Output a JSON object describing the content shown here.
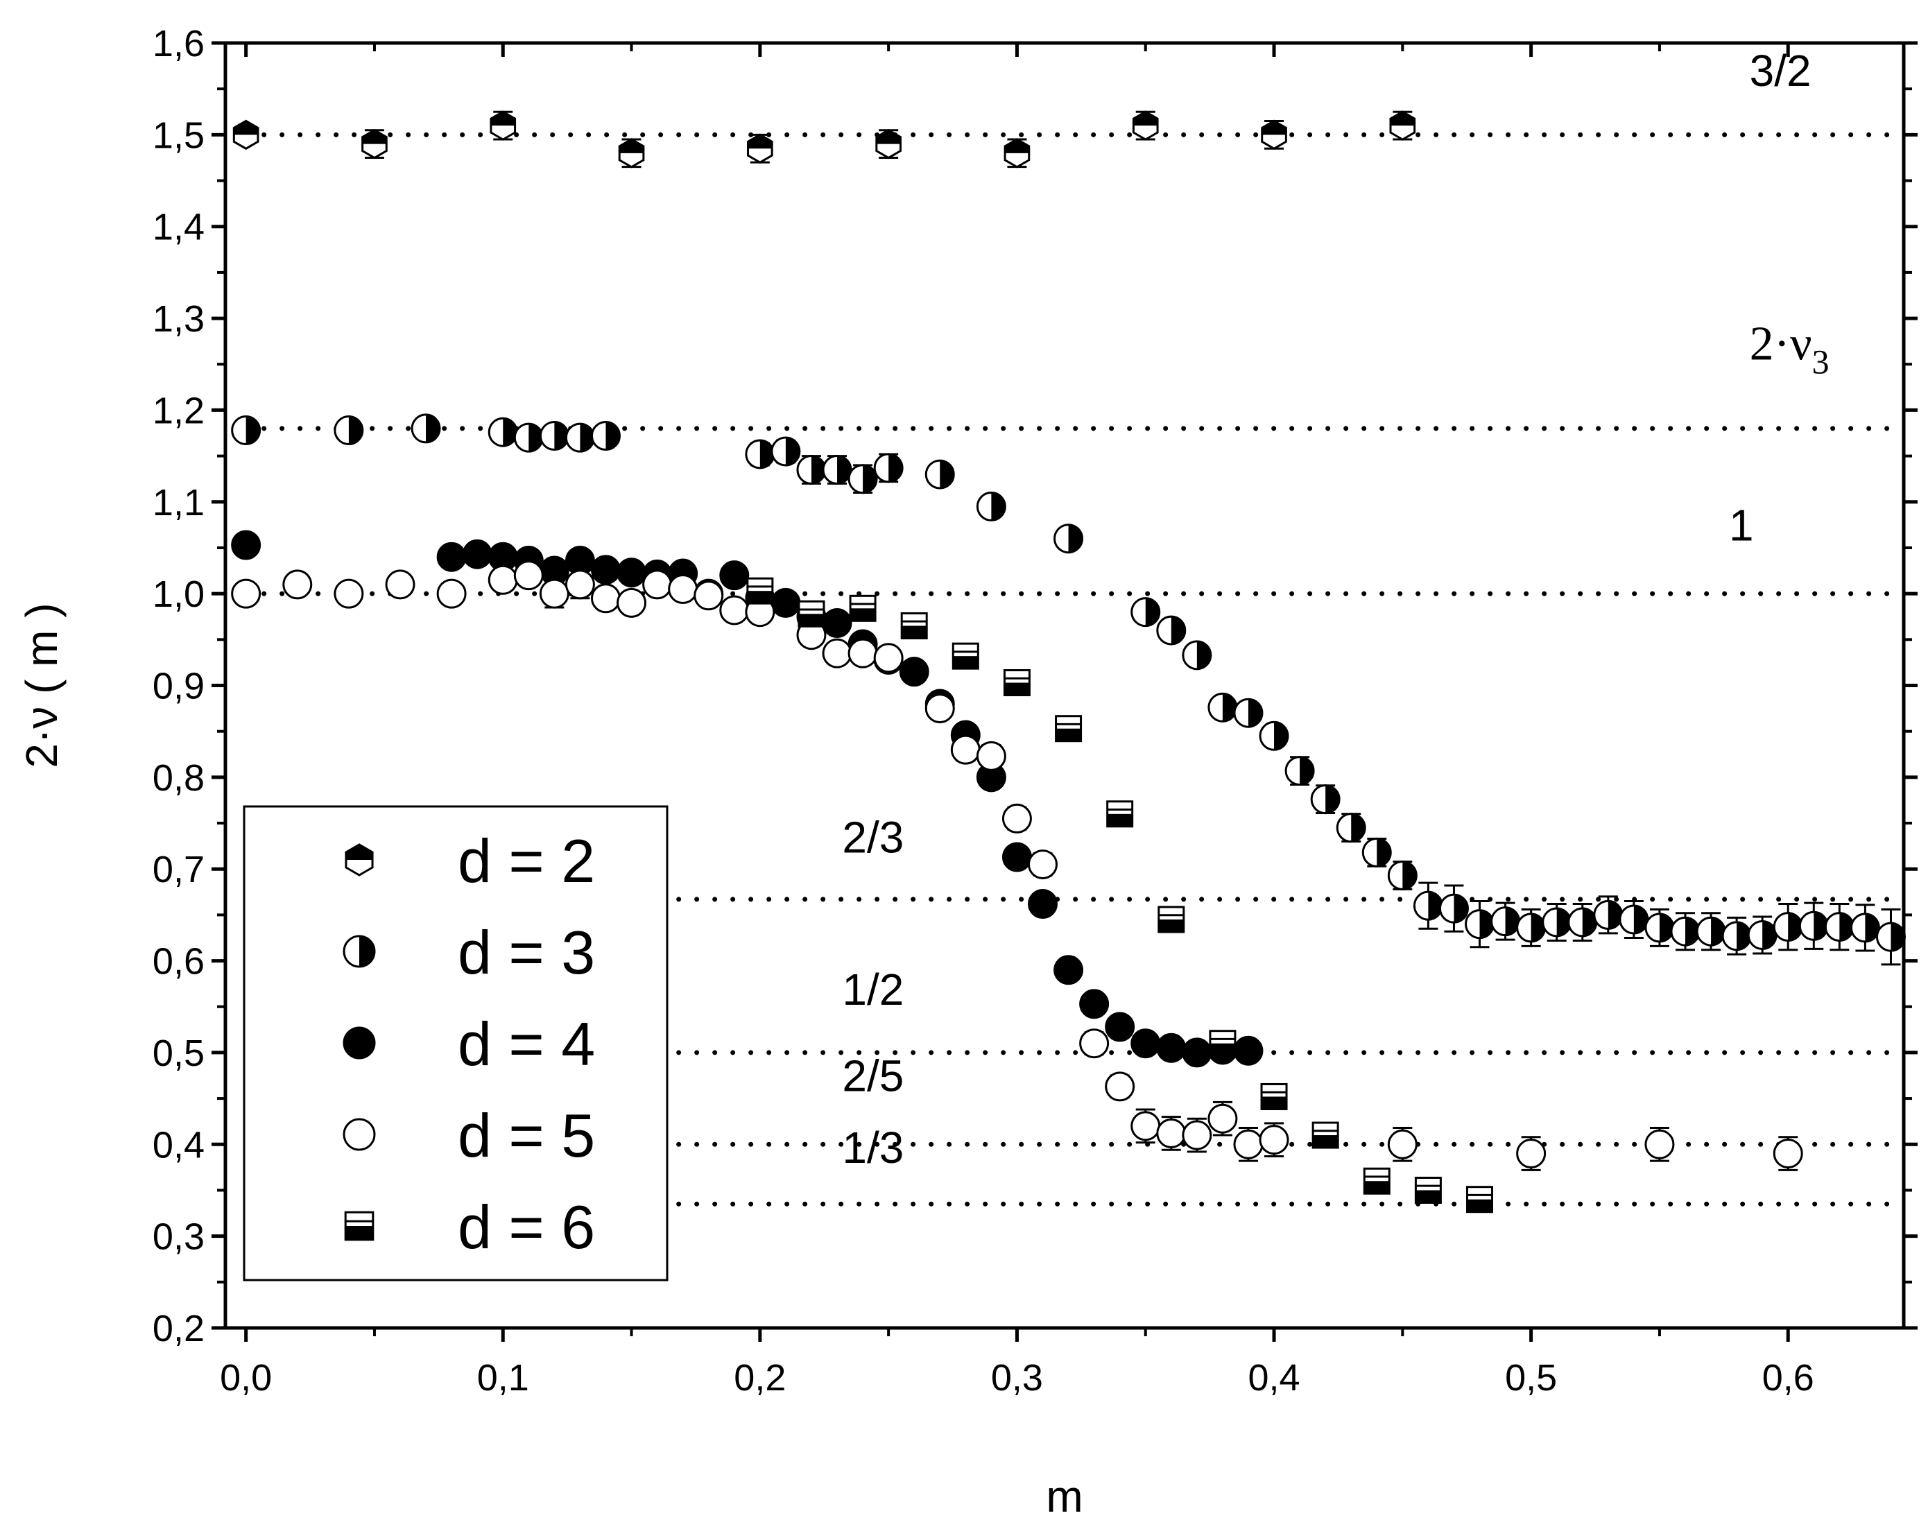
{
  "chart_data": {
    "type": "scatter",
    "xlabel": "m",
    "ylabel": "2·ν ( m )",
    "xlim": [
      -0.008,
      0.645
    ],
    "ylim": [
      0.2,
      1.6
    ],
    "xticks": [
      0.0,
      0.1,
      0.2,
      0.3,
      0.4,
      0.5,
      0.6
    ],
    "xtick_labels": [
      "0,0",
      "0,1",
      "0,2",
      "0,3",
      "0,4",
      "0,5",
      "0,6"
    ],
    "yticks": [
      0.2,
      0.3,
      0.4,
      0.5,
      0.6,
      0.7,
      0.8,
      0.9,
      1.0,
      1.1,
      1.2,
      1.3,
      1.4,
      1.5,
      1.6
    ],
    "ytick_labels": [
      "0,2",
      "0,3",
      "0,4",
      "0,5",
      "0,6",
      "0,7",
      "0,8",
      "0,9",
      "1,0",
      "1,1",
      "1,2",
      "1,3",
      "1,4",
      "1,5",
      "1,6"
    ],
    "grid": false,
    "legend_position": "bottom-left",
    "reference_lines": [
      {
        "y": 1.5,
        "x_start": 0.0,
        "label": "3/2",
        "label_x": 0.585,
        "label_y": 1.553
      },
      {
        "y": 1.18,
        "x_start": 0.0,
        "label": "2·ν",
        "label_sub": "3",
        "label_x": 0.585,
        "label_y": 1.255
      },
      {
        "y": 1.0,
        "x_start": 0.0,
        "label": "1",
        "label_x": 0.577,
        "label_y": 1.058
      },
      {
        "y": 0.667,
        "x_start": 0.0,
        "label": "2/3",
        "label_x": 0.232,
        "label_y": 0.718
      },
      {
        "y": 0.5,
        "x_start": 0.0,
        "label": "1/2",
        "label_x": 0.232,
        "label_y": 0.552
      },
      {
        "y": 0.4,
        "x_start": 0.0,
        "label": "2/5",
        "label_x": 0.232,
        "label_y": 0.458
      },
      {
        "y": 0.335,
        "x_start": 0.0,
        "label": "1/3",
        "label_x": 0.232,
        "label_y": 0.38
      }
    ],
    "series": [
      {
        "name": "d = 2",
        "marker": "hexagon-top-half",
        "x": [
          0.0,
          0.05,
          0.1,
          0.15,
          0.2,
          0.25,
          0.3,
          0.35,
          0.4,
          0.45
        ],
        "y": [
          1.5,
          1.49,
          1.51,
          1.48,
          1.485,
          1.49,
          1.48,
          1.51,
          1.5,
          1.51
        ],
        "err": [
          0.005,
          0.015,
          0.015,
          0.015,
          0.015,
          0.015,
          0.015,
          0.015,
          0.015,
          0.015
        ]
      },
      {
        "name": "d = 3",
        "marker": "circle-right-half",
        "x": [
          0.0,
          0.04,
          0.07,
          0.1,
          0.11,
          0.12,
          0.13,
          0.14,
          0.2,
          0.21,
          0.22,
          0.23,
          0.24,
          0.25,
          0.27,
          0.29,
          0.32,
          0.35,
          0.36,
          0.37,
          0.38,
          0.39,
          0.4,
          0.41,
          0.42,
          0.43,
          0.44,
          0.45,
          0.46,
          0.47,
          0.48,
          0.49,
          0.5,
          0.51,
          0.52,
          0.53,
          0.54,
          0.55,
          0.56,
          0.57,
          0.58,
          0.59,
          0.6,
          0.61,
          0.62,
          0.63,
          0.64
        ],
        "y": [
          1.178,
          1.178,
          1.18,
          1.176,
          1.17,
          1.172,
          1.17,
          1.172,
          1.152,
          1.155,
          1.135,
          1.135,
          1.125,
          1.137,
          1.13,
          1.095,
          1.06,
          0.98,
          0.96,
          0.933,
          0.876,
          0.87,
          0.845,
          0.807,
          0.776,
          0.745,
          0.718,
          0.693,
          0.66,
          0.657,
          0.64,
          0.643,
          0.636,
          0.642,
          0.642,
          0.65,
          0.645,
          0.636,
          0.632,
          0.632,
          0.627,
          0.628,
          0.637,
          0.638,
          0.637,
          0.636,
          0.626
        ],
        "err": [
          0.01,
          0.01,
          0.01,
          0.01,
          0.01,
          0.01,
          0.01,
          0.01,
          0.012,
          0.012,
          0.015,
          0.015,
          0.015,
          0.015,
          0.01,
          0.01,
          0.01,
          0.01,
          0.01,
          0.01,
          0.01,
          0.01,
          0.01,
          0.015,
          0.015,
          0.015,
          0.015,
          0.015,
          0.025,
          0.025,
          0.025,
          0.02,
          0.02,
          0.02,
          0.02,
          0.02,
          0.02,
          0.02,
          0.02,
          0.02,
          0.02,
          0.02,
          0.025,
          0.025,
          0.025,
          0.025,
          0.03
        ]
      },
      {
        "name": "d = 4",
        "marker": "circle-filled",
        "x": [
          0.0,
          0.08,
          0.09,
          0.1,
          0.11,
          0.12,
          0.13,
          0.14,
          0.15,
          0.16,
          0.17,
          0.18,
          0.19,
          0.2,
          0.21,
          0.22,
          0.23,
          0.24,
          0.25,
          0.26,
          0.27,
          0.28,
          0.29,
          0.3,
          0.31,
          0.32,
          0.33,
          0.34,
          0.35,
          0.36,
          0.37,
          0.38,
          0.39
        ],
        "y": [
          1.053,
          1.04,
          1.043,
          1.04,
          1.036,
          1.025,
          1.036,
          1.026,
          1.023,
          1.021,
          1.022,
          1.0,
          1.02,
          0.995,
          0.99,
          0.975,
          0.968,
          0.945,
          0.928,
          0.915,
          0.88,
          0.846,
          0.8,
          0.713,
          0.662,
          0.59,
          0.553,
          0.528,
          0.51,
          0.505,
          0.5,
          0.503,
          0.502
        ],
        "err": [
          0.005,
          0.005,
          0.005,
          0.005,
          0.005,
          0.005,
          0.005,
          0.005,
          0.005,
          0.005,
          0.005,
          0.005,
          0.005,
          0.005,
          0.005,
          0.005,
          0.005,
          0.005,
          0.005,
          0.005,
          0.005,
          0.005,
          0.005,
          0.005,
          0.005,
          0.005,
          0.005,
          0.005,
          0.005,
          0.005,
          0.005,
          0.005,
          0.005
        ]
      },
      {
        "name": "d = 5",
        "marker": "circle-open",
        "x": [
          0.0,
          0.02,
          0.04,
          0.06,
          0.08,
          0.1,
          0.11,
          0.12,
          0.13,
          0.14,
          0.15,
          0.16,
          0.17,
          0.18,
          0.19,
          0.2,
          0.22,
          0.23,
          0.24,
          0.25,
          0.27,
          0.28,
          0.29,
          0.3,
          0.31,
          0.33,
          0.34,
          0.35,
          0.36,
          0.37,
          0.38,
          0.39,
          0.4,
          0.45,
          0.5,
          0.55,
          0.6
        ],
        "y": [
          1.0,
          1.01,
          1.0,
          1.01,
          1.0,
          1.015,
          1.02,
          1.0,
          1.01,
          0.995,
          0.99,
          1.01,
          1.005,
          0.998,
          0.982,
          0.98,
          0.955,
          0.935,
          0.935,
          0.93,
          0.875,
          0.83,
          0.823,
          0.755,
          0.705,
          0.51,
          0.463,
          0.42,
          0.412,
          0.41,
          0.428,
          0.4,
          0.405,
          0.4,
          0.39,
          0.4,
          0.39
        ],
        "err": [
          0.005,
          0.01,
          0.01,
          0.01,
          0.005,
          0.01,
          0.01,
          0.015,
          0.015,
          0.01,
          0.01,
          0.01,
          0.01,
          0.01,
          0.01,
          0.01,
          0.01,
          0.01,
          0.01,
          0.01,
          0.01,
          0.012,
          0.012,
          0.012,
          0.012,
          0.012,
          0.012,
          0.018,
          0.018,
          0.018,
          0.018,
          0.018,
          0.018,
          0.018,
          0.018,
          0.018,
          0.018
        ]
      },
      {
        "name": "d = 6",
        "marker": "square-bottom-half",
        "x": [
          0.2,
          0.22,
          0.24,
          0.26,
          0.28,
          0.3,
          0.32,
          0.34,
          0.36,
          0.38,
          0.4,
          0.42,
          0.44,
          0.46,
          0.48
        ],
        "y": [
          1.003,
          0.978,
          0.984,
          0.965,
          0.932,
          0.903,
          0.853,
          0.76,
          0.645,
          0.51,
          0.452,
          0.41,
          0.36,
          0.35,
          0.34
        ],
        "err": [
          0.01,
          0.01,
          0.01,
          0.01,
          0.01,
          0.008,
          0.008,
          0.008,
          0.008,
          0.008,
          0.008,
          0.008,
          0.008,
          0.008,
          0.008
        ]
      }
    ]
  }
}
